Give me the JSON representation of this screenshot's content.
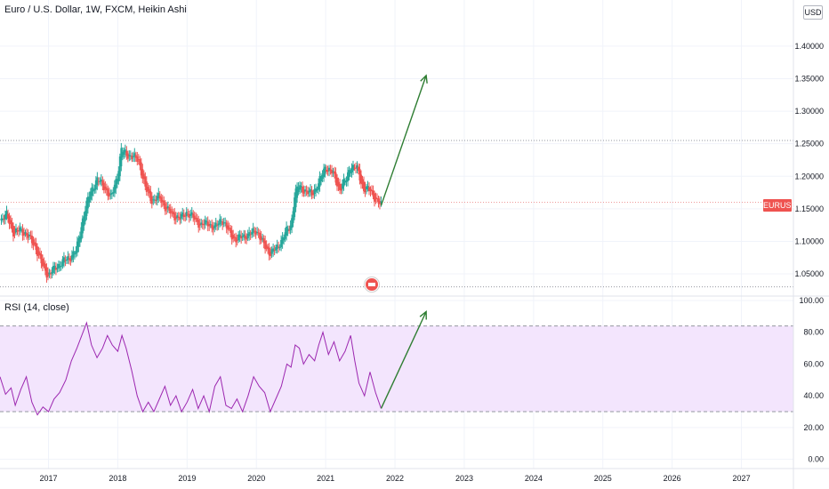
{
  "header": {
    "title": "Euro / U.S. Dollar, 1W, FXCM, Heikin Ashi",
    "currency": "USD"
  },
  "price_badge": {
    "symbol": "EURUSD"
  },
  "rsi_panel": {
    "title": "RSI (14, close)"
  },
  "colors": {
    "up": "#26a69a",
    "down": "#ef5350",
    "rsi_line": "#9c27b0",
    "rsi_band": "#f3e5fd",
    "arrow": "#2e7d32"
  },
  "chart_data": [
    {
      "type": "candlestick",
      "title": "Euro / U.S. Dollar, 1W, FXCM, Heikin Ashi",
      "price_axis_ticks": [
        "1.05000",
        "1.10000",
        "1.15000",
        "1.20000",
        "1.25000",
        "1.30000",
        "1.35000",
        "1.40000"
      ],
      "time_axis_ticks": [
        "2017",
        "2018",
        "2019",
        "2020",
        "2021",
        "2022",
        "2023",
        "2024",
        "2025",
        "2026",
        "2027"
      ],
      "ylim": [
        1.02,
        1.46
      ],
      "xlim": [
        2016.3,
        2027.75
      ],
      "horizontal_levels": [
        1.255,
        1.16,
        1.03
      ],
      "close_series": [
        [
          2016.3,
          1.132
        ],
        [
          2016.4,
          1.14
        ],
        [
          2016.5,
          1.112
        ],
        [
          2016.6,
          1.118
        ],
        [
          2016.7,
          1.108
        ],
        [
          2016.8,
          1.095
        ],
        [
          2016.9,
          1.065
        ],
        [
          2017.0,
          1.047
        ],
        [
          2017.1,
          1.06
        ],
        [
          2017.2,
          1.068
        ],
        [
          2017.3,
          1.075
        ],
        [
          2017.4,
          1.085
        ],
        [
          2017.5,
          1.138
        ],
        [
          2017.6,
          1.175
        ],
        [
          2017.7,
          1.195
        ],
        [
          2017.8,
          1.185
        ],
        [
          2017.9,
          1.165
        ],
        [
          2018.0,
          1.205
        ],
        [
          2018.05,
          1.24
        ],
        [
          2018.15,
          1.233
        ],
        [
          2018.3,
          1.225
        ],
        [
          2018.4,
          1.18
        ],
        [
          2018.5,
          1.162
        ],
        [
          2018.6,
          1.168
        ],
        [
          2018.7,
          1.15
        ],
        [
          2018.8,
          1.14
        ],
        [
          2018.9,
          1.135
        ],
        [
          2019.0,
          1.145
        ],
        [
          2019.1,
          1.135
        ],
        [
          2019.2,
          1.125
        ],
        [
          2019.3,
          1.128
        ],
        [
          2019.4,
          1.12
        ],
        [
          2019.5,
          1.135
        ],
        [
          2019.6,
          1.115
        ],
        [
          2019.7,
          1.102
        ],
        [
          2019.8,
          1.108
        ],
        [
          2019.9,
          1.11
        ],
        [
          2020.0,
          1.118
        ],
        [
          2020.1,
          1.095
        ],
        [
          2020.2,
          1.082
        ],
        [
          2020.3,
          1.09
        ],
        [
          2020.4,
          1.11
        ],
        [
          2020.5,
          1.125
        ],
        [
          2020.55,
          1.17
        ],
        [
          2020.6,
          1.185
        ],
        [
          2020.7,
          1.178
        ],
        [
          2020.8,
          1.172
        ],
        [
          2020.9,
          1.19
        ],
        [
          2021.0,
          1.215
        ],
        [
          2021.1,
          1.205
        ],
        [
          2021.2,
          1.18
        ],
        [
          2021.3,
          1.195
        ],
        [
          2021.35,
          1.215
        ],
        [
          2021.45,
          1.212
        ],
        [
          2021.55,
          1.18
        ],
        [
          2021.65,
          1.178
        ],
        [
          2021.75,
          1.16
        ],
        [
          2021.8,
          1.155
        ]
      ],
      "projection": {
        "from": [
          2021.8,
          1.155
        ],
        "to": [
          2022.45,
          1.355
        ]
      },
      "last_symbol": "EURUSD"
    },
    {
      "type": "line",
      "title": "RSI (14, close)",
      "y_axis_ticks": [
        "0.00",
        "20.00",
        "40.00",
        "60.00",
        "80.00",
        "100.00"
      ],
      "ylim": [
        -3,
        100
      ],
      "band": [
        30,
        84
      ],
      "series": [
        {
          "values": [
            [
              2016.3,
              52
            ],
            [
              2016.38,
              41
            ],
            [
              2016.46,
              45
            ],
            [
              2016.52,
              34
            ],
            [
              2016.6,
              44
            ],
            [
              2016.68,
              52
            ],
            [
              2016.76,
              36
            ],
            [
              2016.84,
              28
            ],
            [
              2016.92,
              33
            ],
            [
              2017.0,
              30
            ],
            [
              2017.08,
              38
            ],
            [
              2017.16,
              42
            ],
            [
              2017.25,
              50
            ],
            [
              2017.33,
              62
            ],
            [
              2017.41,
              70
            ],
            [
              2017.48,
              78
            ],
            [
              2017.55,
              86
            ],
            [
              2017.62,
              72
            ],
            [
              2017.7,
              64
            ],
            [
              2017.78,
              70
            ],
            [
              2017.85,
              78
            ],
            [
              2017.92,
              72
            ],
            [
              2018.0,
              68
            ],
            [
              2018.06,
              78
            ],
            [
              2018.12,
              70
            ],
            [
              2018.2,
              56
            ],
            [
              2018.28,
              40
            ],
            [
              2018.36,
              30
            ],
            [
              2018.44,
              36
            ],
            [
              2018.52,
              30
            ],
            [
              2018.6,
              38
            ],
            [
              2018.68,
              46
            ],
            [
              2018.76,
              34
            ],
            [
              2018.84,
              40
            ],
            [
              2018.92,
              30
            ],
            [
              2019.0,
              36
            ],
            [
              2019.08,
              44
            ],
            [
              2019.16,
              32
            ],
            [
              2019.24,
              40
            ],
            [
              2019.32,
              30
            ],
            [
              2019.4,
              46
            ],
            [
              2019.48,
              52
            ],
            [
              2019.56,
              34
            ],
            [
              2019.64,
              32
            ],
            [
              2019.72,
              38
            ],
            [
              2019.8,
              30
            ],
            [
              2019.88,
              40
            ],
            [
              2019.96,
              52
            ],
            [
              2020.04,
              46
            ],
            [
              2020.12,
              42
            ],
            [
              2020.2,
              30
            ],
            [
              2020.28,
              38
            ],
            [
              2020.36,
              46
            ],
            [
              2020.44,
              60
            ],
            [
              2020.5,
              58
            ],
            [
              2020.56,
              72
            ],
            [
              2020.62,
              70
            ],
            [
              2020.68,
              60
            ],
            [
              2020.76,
              66
            ],
            [
              2020.84,
              62
            ],
            [
              2020.9,
              72
            ],
            [
              2020.96,
              80
            ],
            [
              2021.04,
              66
            ],
            [
              2021.12,
              74
            ],
            [
              2021.2,
              62
            ],
            [
              2021.28,
              68
            ],
            [
              2021.36,
              78
            ],
            [
              2021.42,
              62
            ],
            [
              2021.48,
              48
            ],
            [
              2021.56,
              40
            ],
            [
              2021.64,
              55
            ],
            [
              2021.72,
              42
            ],
            [
              2021.8,
              32
            ]
          ]
        }
      ],
      "projection": {
        "from": [
          2021.8,
          32
        ],
        "to": [
          2022.45,
          93
        ]
      }
    }
  ]
}
